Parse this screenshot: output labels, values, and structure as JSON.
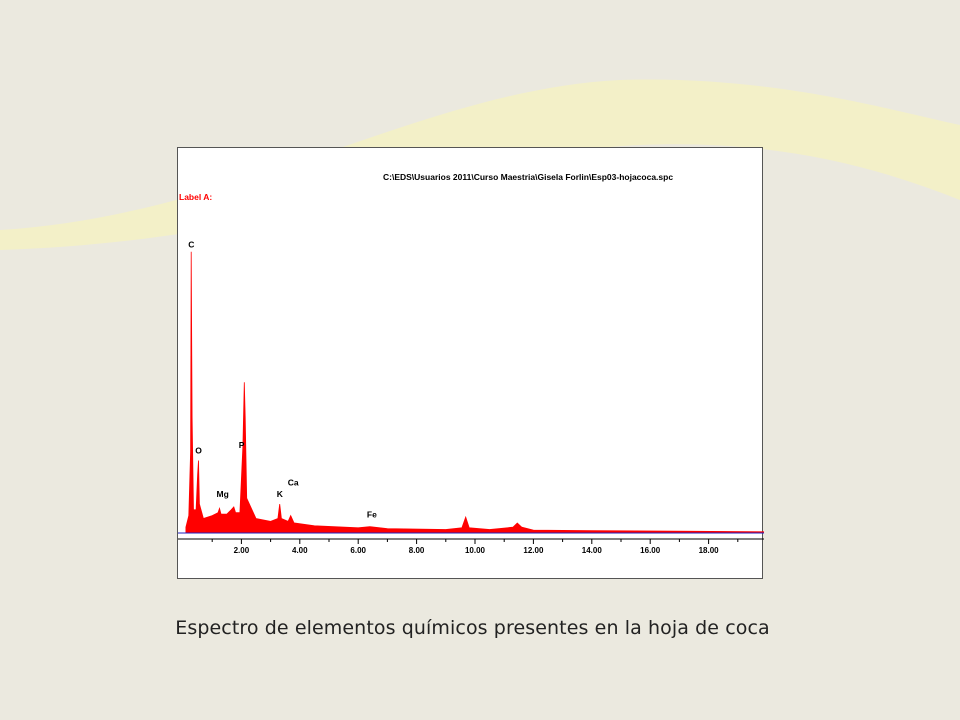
{
  "caption": "Espectro de elementos químicos presentes en la hoja de coca",
  "colors": {
    "background": "#ebe9df",
    "wave": "#f3f0c8",
    "spectrum": "#ff0000",
    "baseline": "#2020c0"
  },
  "chart_data": {
    "type": "area",
    "title": "C:\\EDS\\Usuarios 2011\\Curso Maestria\\Gisela Forlin\\Esp03-hojacoca.spc",
    "label": "Label A:",
    "xlabel": "",
    "ylabel": "",
    "xlim": [
      0,
      20
    ],
    "ylim": [
      0,
      100
    ],
    "x_ticks": [
      "2.00",
      "4.00",
      "6.00",
      "8.00",
      "10.00",
      "12.00",
      "14.00",
      "16.00",
      "18.00"
    ],
    "grid": false,
    "series": [
      {
        "values": [
          {
            "x": 0.1,
            "y": 2
          },
          {
            "x": 0.2,
            "y": 6
          },
          {
            "x": 0.26,
            "y": 28
          },
          {
            "x": 0.28,
            "y": 97
          },
          {
            "x": 0.31,
            "y": 40
          },
          {
            "x": 0.36,
            "y": 8
          },
          {
            "x": 0.45,
            "y": 8
          },
          {
            "x": 0.5,
            "y": 20
          },
          {
            "x": 0.53,
            "y": 25
          },
          {
            "x": 0.56,
            "y": 10
          },
          {
            "x": 0.7,
            "y": 5
          },
          {
            "x": 1.0,
            "y": 6
          },
          {
            "x": 1.2,
            "y": 7
          },
          {
            "x": 1.25,
            "y": 8.5
          },
          {
            "x": 1.3,
            "y": 6.5
          },
          {
            "x": 1.5,
            "y": 6.5
          },
          {
            "x": 1.65,
            "y": 8
          },
          {
            "x": 1.74,
            "y": 9
          },
          {
            "x": 1.8,
            "y": 7
          },
          {
            "x": 1.95,
            "y": 7
          },
          {
            "x": 2.05,
            "y": 30
          },
          {
            "x": 2.1,
            "y": 52
          },
          {
            "x": 2.13,
            "y": 40
          },
          {
            "x": 2.18,
            "y": 12
          },
          {
            "x": 2.5,
            "y": 5
          },
          {
            "x": 3.0,
            "y": 4
          },
          {
            "x": 3.25,
            "y": 5
          },
          {
            "x": 3.31,
            "y": 10
          },
          {
            "x": 3.37,
            "y": 5
          },
          {
            "x": 3.6,
            "y": 4
          },
          {
            "x": 3.69,
            "y": 6
          },
          {
            "x": 3.8,
            "y": 3.5
          },
          {
            "x": 4.5,
            "y": 2.5
          },
          {
            "x": 6.0,
            "y": 1.8
          },
          {
            "x": 6.4,
            "y": 2.2
          },
          {
            "x": 7.0,
            "y": 1.5
          },
          {
            "x": 9.0,
            "y": 1.2
          },
          {
            "x": 9.55,
            "y": 1.8
          },
          {
            "x": 9.68,
            "y": 5.5
          },
          {
            "x": 9.8,
            "y": 1.8
          },
          {
            "x": 10.5,
            "y": 1.2
          },
          {
            "x": 11.3,
            "y": 2
          },
          {
            "x": 11.45,
            "y": 3.4
          },
          {
            "x": 11.6,
            "y": 2
          },
          {
            "x": 12.0,
            "y": 1
          },
          {
            "x": 14.0,
            "y": 0.8
          },
          {
            "x": 17.5,
            "y": 0.6
          },
          {
            "x": 20.0,
            "y": 0.4
          }
        ]
      }
    ],
    "annotations": [
      {
        "text": "C",
        "x": 0.28,
        "y": 97
      },
      {
        "text": "O",
        "x": 0.52,
        "y": 26
      },
      {
        "text": "P",
        "x": 2.01,
        "y": 28
      },
      {
        "text": "Mg",
        "x": 1.25,
        "y": 11
      },
      {
        "text": "K",
        "x": 3.31,
        "y": 11
      },
      {
        "text": "Ca",
        "x": 3.69,
        "y": 15
      },
      {
        "text": "Fe",
        "x": 6.4,
        "y": 4
      }
    ]
  }
}
